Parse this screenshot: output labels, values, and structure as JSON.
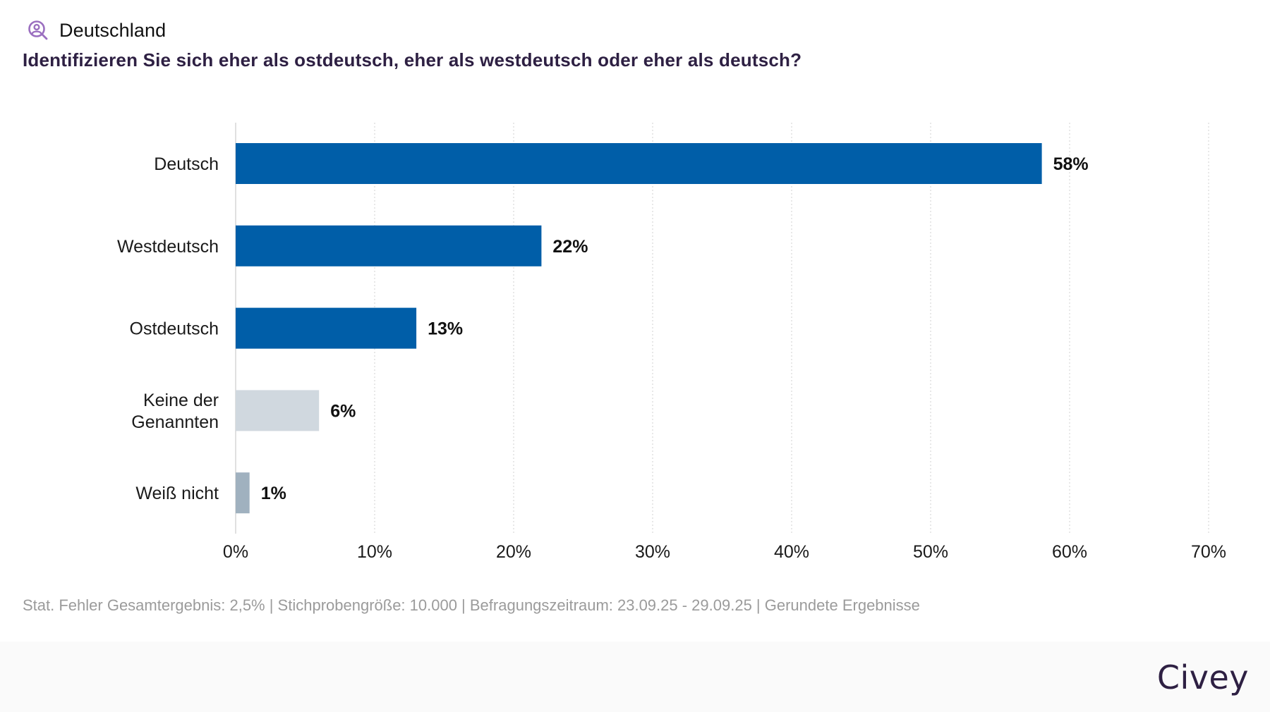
{
  "header": {
    "region_icon": "user-search-icon",
    "region": "Deutschland",
    "question": "Identifizieren Sie sich eher als ostdeutsch, eher als westdeutsch oder eher als deutsch?"
  },
  "colors": {
    "primary_bar": "#005ea8",
    "neutral_bar": "#d0d8df",
    "unknown_bar": "#a0b1bf",
    "grid": "#d9d9d9",
    "axis": "#e0e0e0",
    "question_text": "#2e2043",
    "footnote_text": "#9b9b9b",
    "icon": "#9b6fc0"
  },
  "chart_data": {
    "type": "bar",
    "orientation": "horizontal",
    "title": "Identifizieren Sie sich eher als ostdeutsch, eher als westdeutsch oder eher als deutsch?",
    "xlabel": "",
    "ylabel": "",
    "categories": [
      "Deutsch",
      "Westdeutsch",
      "Ostdeutsch",
      "Keine der Genannten",
      "Weiß nicht"
    ],
    "category_lines": [
      [
        "Deutsch"
      ],
      [
        "Westdeutsch"
      ],
      [
        "Ostdeutsch"
      ],
      [
        "Keine der",
        "Genannten"
      ],
      [
        "Weiß nicht"
      ]
    ],
    "values": [
      58,
      22,
      13,
      6,
      1
    ],
    "value_labels": [
      "58%",
      "22%",
      "13%",
      "6%",
      "1%"
    ],
    "bar_color_keys": [
      "primary_bar",
      "primary_bar",
      "primary_bar",
      "neutral_bar",
      "unknown_bar"
    ],
    "xlim": [
      0,
      70
    ],
    "xticks": [
      0,
      10,
      20,
      30,
      40,
      50,
      60,
      70
    ],
    "xtick_labels": [
      "0%",
      "10%",
      "20%",
      "30%",
      "40%",
      "50%",
      "60%",
      "70%"
    ],
    "grid": true,
    "grid_style": "dotted vertical",
    "legend": "none"
  },
  "footnote": "Stat. Fehler Gesamtergebnis: 2,5% | Stichprobengröße: 10.000 | Befragungszeitraum: 23.09.25 - 29.09.25 | Gerundete Ergebnisse",
  "footer": {
    "brand": "Civey"
  }
}
